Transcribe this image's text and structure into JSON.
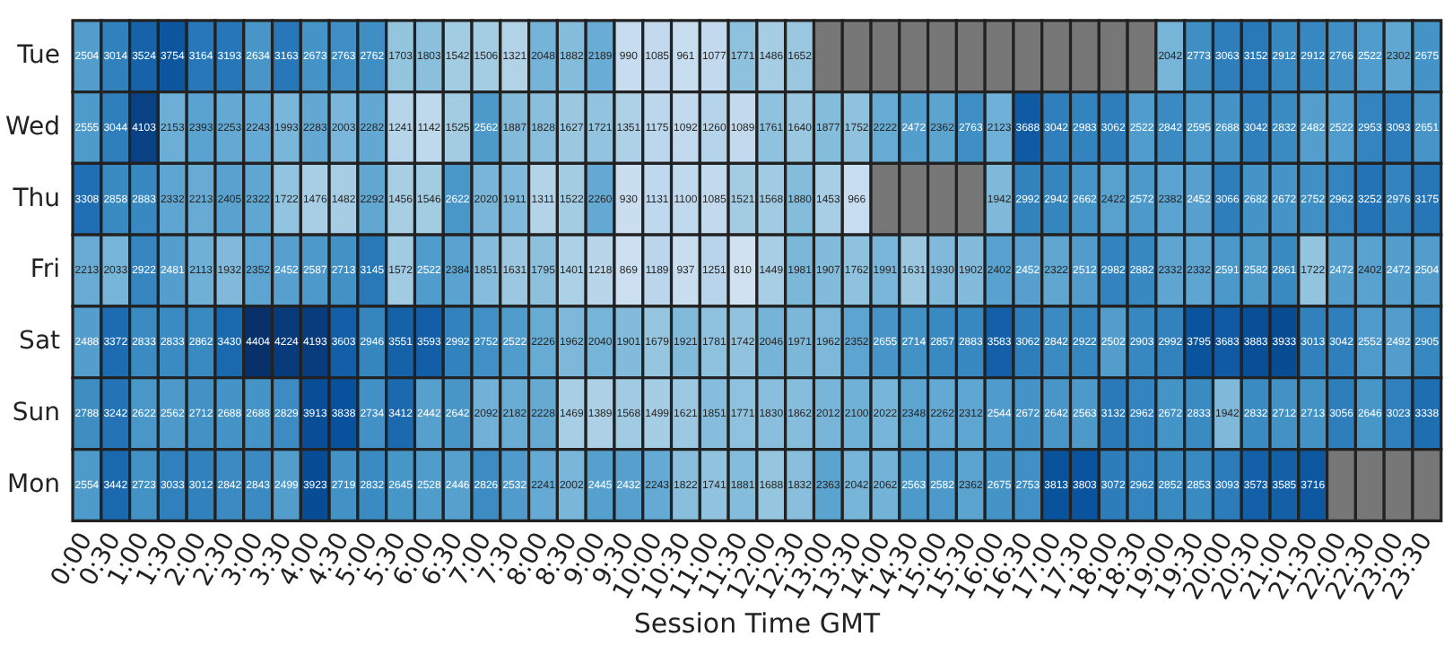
{
  "chart_data": {
    "type": "heatmap",
    "xlabel": "Session Time GMT",
    "categories": [
      "0:00",
      "0:30",
      "1:00",
      "1:30",
      "2:00",
      "2:30",
      "3:00",
      "3:30",
      "4:00",
      "4:30",
      "5:00",
      "5:30",
      "6:00",
      "6:30",
      "7:00",
      "7:30",
      "8:00",
      "8:30",
      "9:00",
      "9:30",
      "10:00",
      "10:30",
      "11:00",
      "11:30",
      "12:00",
      "12:30",
      "13:00",
      "13:30",
      "14:00",
      "14:30",
      "15:00",
      "15:30",
      "16:00",
      "16:30",
      "17:00",
      "17:30",
      "18:00",
      "18:30",
      "19:00",
      "19:30",
      "20:00",
      "20:30",
      "21:00",
      "21:30",
      "22:00",
      "22:30",
      "23:00",
      "23:30"
    ],
    "y_categories": [
      "Tue",
      "Wed",
      "Thu",
      "Fri",
      "Sat",
      "Sun",
      "Mon"
    ],
    "cells": [
      [
        2504,
        3014,
        3524,
        3754,
        3164,
        3193,
        2634,
        3163,
        2673,
        2763,
        2762,
        1703,
        1803,
        1542,
        1506,
        1321,
        2048,
        1882,
        2189,
        990,
        1085,
        961,
        1077,
        1771,
        1486,
        1652,
        null,
        null,
        null,
        null,
        null,
        null,
        null,
        null,
        null,
        null,
        null,
        null,
        2042,
        2773,
        3063,
        3152,
        2912,
        2912,
        2766,
        2522,
        2302,
        2675
      ],
      [
        2555,
        3044,
        4103,
        2153,
        2393,
        2253,
        2243,
        1993,
        2283,
        2003,
        2282,
        1241,
        1142,
        1525,
        2562,
        1887,
        1828,
        1627,
        1721,
        1351,
        1175,
        1092,
        1260,
        1089,
        1761,
        1640,
        1877,
        1752,
        2222,
        2472,
        2362,
        2763,
        2123,
        3688,
        3042,
        2983,
        3062,
        2522,
        2842,
        2595,
        2688,
        3042,
        2832,
        2482,
        2522,
        2953,
        3093,
        2651
      ],
      [
        3308,
        2858,
        2883,
        2332,
        2213,
        2405,
        2322,
        1722,
        1476,
        1482,
        2292,
        1456,
        1546,
        2622,
        2020,
        1911,
        1311,
        1522,
        2260,
        930,
        1131,
        1100,
        1085,
        1521,
        1568,
        1880,
        1453,
        966,
        null,
        null,
        null,
        null,
        1942,
        2992,
        2942,
        2662,
        2422,
        2572,
        2382,
        2452,
        3066,
        2682,
        2672,
        2752,
        2962,
        3252,
        2976,
        3175
      ],
      [
        2213,
        2033,
        2922,
        2481,
        2113,
        1932,
        2352,
        2452,
        2587,
        2713,
        3145,
        1572,
        2522,
        2384,
        1851,
        1631,
        1795,
        1401,
        1218,
        869,
        1189,
        937,
        1251,
        810,
        1449,
        1981,
        1907,
        1762,
        1991,
        1631,
        1930,
        1902,
        2402,
        2452,
        2322,
        2512,
        2982,
        2882,
        2332,
        2332,
        2591,
        2582,
        2861,
        1722,
        2472,
        2402,
        2472,
        2504
      ],
      [
        2488,
        3372,
        2833,
        2833,
        2862,
        3430,
        4404,
        4224,
        4193,
        3603,
        2946,
        3551,
        3593,
        2992,
        2752,
        2522,
        2226,
        1962,
        2040,
        1901,
        1679,
        1921,
        1781,
        1742,
        2046,
        1971,
        1962,
        2352,
        2655,
        2714,
        2857,
        2883,
        3583,
        3062,
        2842,
        2922,
        2502,
        2903,
        2992,
        3795,
        3683,
        3883,
        3933,
        3013,
        3042,
        2552,
        2492,
        2905
      ],
      [
        2788,
        3242,
        2622,
        2562,
        2712,
        2688,
        2688,
        2829,
        3913,
        3838,
        2734,
        3412,
        2442,
        2642,
        2092,
        2182,
        2228,
        1469,
        1389,
        1568,
        1499,
        1621,
        1851,
        1771,
        1830,
        1862,
        2012,
        2100,
        2022,
        2348,
        2262,
        2312,
        2544,
        2672,
        2642,
        2563,
        3132,
        2962,
        2672,
        2833,
        1942,
        2832,
        2712,
        2713,
        3056,
        2646,
        3023,
        3338
      ],
      [
        2554,
        3442,
        2723,
        3033,
        3012,
        2842,
        2843,
        2499,
        3923,
        2719,
        2832,
        2645,
        2528,
        2446,
        2826,
        2532,
        2241,
        2002,
        2445,
        2432,
        2243,
        1822,
        1741,
        1881,
        1688,
        1832,
        2363,
        2042,
        2062,
        2563,
        2582,
        2362,
        2675,
        2753,
        3813,
        3803,
        3072,
        2962,
        2852,
        2853,
        3093,
        3573,
        3585,
        3716,
        null,
        null,
        null,
        null
      ]
    ],
    "data_labels": true,
    "legend": false
  }
}
